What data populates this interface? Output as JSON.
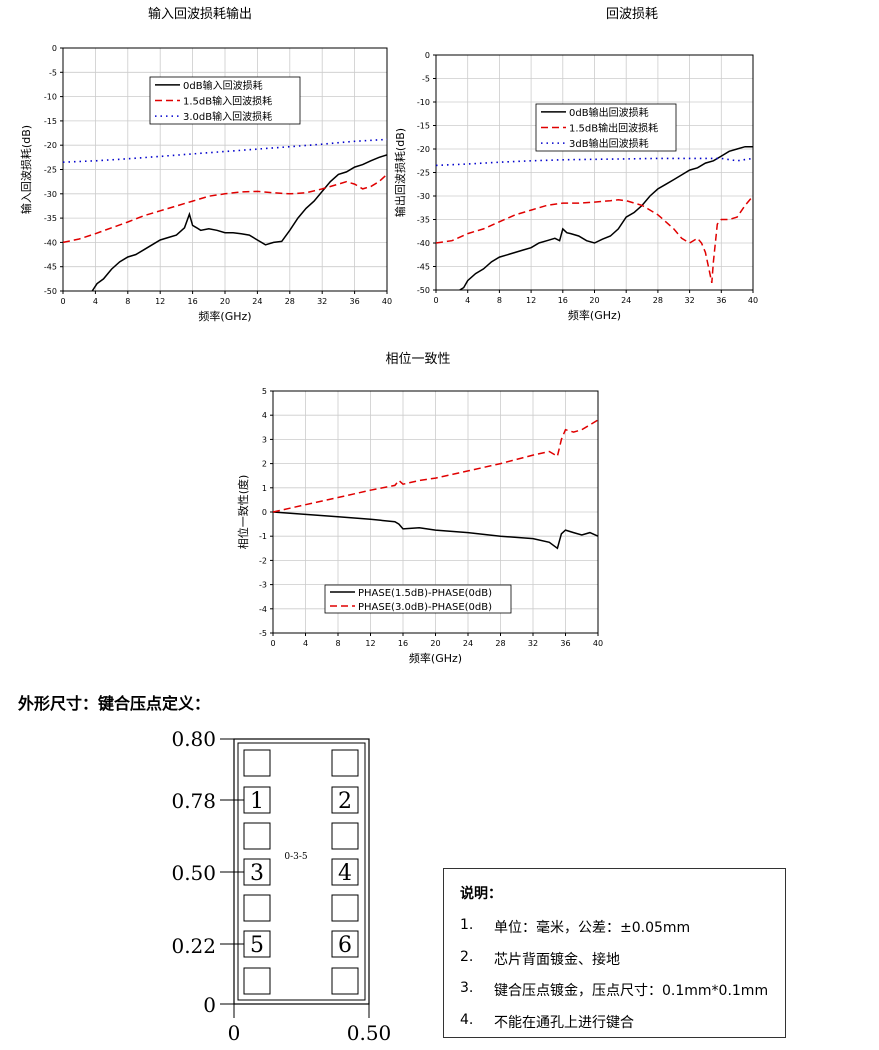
{
  "chart_data": [
    {
      "type": "line",
      "title": "输入回波损耗输出",
      "xlabel": "频率(GHz)",
      "ylabel": "输入回波损耗(dB)",
      "xlim": [
        0,
        40
      ],
      "ylim": [
        -50,
        0
      ],
      "xticks": [
        0,
        4,
        8,
        12,
        16,
        20,
        24,
        28,
        32,
        36,
        40
      ],
      "yticks": [
        0,
        -5,
        -10,
        -15,
        -20,
        -25,
        -30,
        -35,
        -40,
        -45,
        -50
      ],
      "grid": true,
      "legend_position": "top-center",
      "series": [
        {
          "name": "0dB输入回波损耗",
          "color": "#000000",
          "style": "solid",
          "x": [
            3.6,
            4.2,
            5,
            6,
            7,
            8,
            9,
            10,
            11,
            12,
            13,
            14,
            15,
            15.6,
            16,
            16.5,
            17,
            18,
            19,
            20,
            21,
            22,
            23,
            24,
            25,
            26,
            27,
            28,
            29,
            30,
            31,
            32,
            33,
            34,
            35,
            36,
            37,
            38,
            39,
            40
          ],
          "y": [
            -50,
            -48.5,
            -47.5,
            -45.5,
            -44,
            -43,
            -42.5,
            -41.5,
            -40.5,
            -39.5,
            -39,
            -38.5,
            -37,
            -34.2,
            -36.5,
            -37,
            -37.5,
            -37.2,
            -37.5,
            -38,
            -38,
            -38.2,
            -38.5,
            -39.5,
            -40.5,
            -40,
            -39.8,
            -37.5,
            -35,
            -33,
            -31.5,
            -29.5,
            -27.5,
            -26,
            -25.5,
            -24.5,
            -24,
            -23.2,
            -22.5,
            -22
          ]
        },
        {
          "name": "1.5dB输入回波损耗",
          "color": "#e00000",
          "style": "dashed",
          "x": [
            0,
            2,
            4,
            6,
            8,
            10,
            12,
            14,
            16,
            18,
            20,
            22,
            24,
            26,
            28,
            30,
            32,
            33,
            34,
            35,
            36,
            37,
            38,
            39,
            40
          ],
          "y": [
            -40,
            -39.3,
            -38.2,
            -37,
            -35.8,
            -34.5,
            -33.5,
            -32.5,
            -31.5,
            -30.5,
            -30,
            -29.6,
            -29.5,
            -29.8,
            -30,
            -29.8,
            -29,
            -28.5,
            -28,
            -27.5,
            -28,
            -29,
            -28.5,
            -27.5,
            -26
          ]
        },
        {
          "name": "3.0dB输入回波损耗",
          "color": "#0000cc",
          "style": "dotted",
          "x": [
            0,
            4,
            8,
            12,
            16,
            20,
            24,
            28,
            32,
            36,
            40
          ],
          "y": [
            -23.5,
            -23.2,
            -22.8,
            -22.3,
            -21.8,
            -21.3,
            -20.8,
            -20.3,
            -19.8,
            -19.2,
            -18.8
          ]
        }
      ]
    },
    {
      "type": "line",
      "title": "回波损耗",
      "xlabel": "频率(GHz)",
      "ylabel": "输出回波损耗(dB)",
      "xlim": [
        0,
        40
      ],
      "ylim": [
        -50,
        0
      ],
      "xticks": [
        0,
        4,
        8,
        12,
        16,
        20,
        24,
        28,
        32,
        36,
        40
      ],
      "yticks": [
        0,
        -5,
        -10,
        -15,
        -20,
        -25,
        -30,
        -35,
        -40,
        -45,
        -50
      ],
      "grid": true,
      "legend_position": "top-center",
      "series": [
        {
          "name": "0dB输出回波损耗",
          "color": "#000000",
          "style": "solid",
          "x": [
            3,
            3.5,
            4,
            5,
            6,
            7,
            8,
            9,
            10,
            11,
            12,
            13,
            14,
            15,
            15.6,
            16,
            16.5,
            17,
            18,
            19,
            20,
            21,
            22,
            23,
            24,
            25,
            26,
            27,
            28,
            29,
            30,
            31,
            32,
            33,
            34,
            35,
            36,
            37,
            38,
            39,
            40
          ],
          "y": [
            -50,
            -49.5,
            -48,
            -46.5,
            -45.5,
            -44,
            -43,
            -42.5,
            -42,
            -41.5,
            -41,
            -40,
            -39.5,
            -39,
            -39.5,
            -37,
            -37.8,
            -38,
            -38.5,
            -39.5,
            -40,
            -39.2,
            -38.5,
            -37,
            -34.5,
            -33.5,
            -32,
            -30,
            -28.5,
            -27.5,
            -26.5,
            -25.5,
            -24.5,
            -24,
            -23,
            -22.5,
            -21.5,
            -20.5,
            -20,
            -19.5,
            -19.5
          ]
        },
        {
          "name": "1.5dB输出回波损耗",
          "color": "#e00000",
          "style": "dashed",
          "x": [
            0,
            2,
            4,
            6,
            8,
            10,
            12,
            14,
            16,
            18,
            20,
            22,
            23,
            24,
            26,
            28,
            29,
            30,
            31,
            32,
            33,
            33.5,
            34,
            34.5,
            34.8,
            35,
            35.5,
            36,
            37,
            38,
            39,
            40
          ],
          "y": [
            -40,
            -39.5,
            -38,
            -37,
            -35.5,
            -34,
            -33,
            -32,
            -31.5,
            -31.5,
            -31.3,
            -31,
            -30.8,
            -31,
            -32,
            -34,
            -35.5,
            -37,
            -39,
            -40,
            -39,
            -40,
            -42,
            -46,
            -48.5,
            -44,
            -36,
            -35,
            -35,
            -34.5,
            -32,
            -30
          ]
        },
        {
          "name": "3dB输出回波损耗",
          "color": "#0000cc",
          "style": "dotted",
          "x": [
            0,
            4,
            8,
            12,
            16,
            20,
            24,
            28,
            32,
            36,
            38,
            40
          ],
          "y": [
            -23.5,
            -23.2,
            -22.8,
            -22.5,
            -22.3,
            -22.2,
            -22.1,
            -22,
            -22,
            -22,
            -22.5,
            -22
          ]
        }
      ]
    },
    {
      "type": "line",
      "title": "相位一致性",
      "xlabel": "频率(GHz)",
      "ylabel": "相位一致性(度)",
      "xlim": [
        0,
        40
      ],
      "ylim": [
        -5,
        5
      ],
      "xticks": [
        0,
        4,
        8,
        12,
        16,
        20,
        24,
        28,
        32,
        36,
        40
      ],
      "yticks": [
        5,
        4,
        3,
        2,
        1,
        0,
        -1,
        -2,
        -3,
        -4,
        -5
      ],
      "grid": true,
      "legend_position": "bottom-center",
      "series": [
        {
          "name": "PHASE(1.5dB)-PHASE(0dB)",
          "color": "#000000",
          "style": "solid",
          "x": [
            0,
            4,
            8,
            12,
            15,
            15.5,
            16,
            18,
            20,
            24,
            28,
            32,
            34,
            35,
            35.5,
            36,
            37,
            38,
            39,
            40
          ],
          "y": [
            0,
            -0.1,
            -0.2,
            -0.3,
            -0.4,
            -0.5,
            -0.7,
            -0.65,
            -0.75,
            -0.85,
            -1,
            -1.1,
            -1.25,
            -1.5,
            -0.9,
            -0.75,
            -0.85,
            -0.95,
            -0.85,
            -1
          ]
        },
        {
          "name": "PHASE(3.0dB)-PHASE(0dB)",
          "color": "#e00000",
          "style": "dashed",
          "x": [
            0,
            4,
            8,
            12,
            15,
            15.5,
            16,
            18,
            20,
            24,
            28,
            32,
            34,
            35,
            35.5,
            36,
            37,
            38,
            39,
            40
          ],
          "y": [
            0,
            0.3,
            0.6,
            0.9,
            1.1,
            1.3,
            1.15,
            1.3,
            1.4,
            1.7,
            2,
            2.35,
            2.5,
            2.3,
            3,
            3.4,
            3.3,
            3.4,
            3.6,
            3.8
          ]
        }
      ]
    }
  ],
  "section_title": "外形尺寸：键合压点定义：",
  "dimension_drawing": {
    "y_labels": [
      "0.80",
      "0.78",
      "0.50",
      "0.22",
      "0"
    ],
    "x_labels": [
      "0",
      "0.50"
    ],
    "chip_label": "0-3-5",
    "pads": [
      "1",
      "2",
      "3",
      "4",
      "5",
      "6"
    ]
  },
  "notes": {
    "title": "说明：",
    "items": [
      {
        "num": "1.",
        "text": "单位：毫米，公差：±0.05mm"
      },
      {
        "num": "2.",
        "text": "芯片背面镀金、接地"
      },
      {
        "num": "3.",
        "text": "键合压点镀金，压点尺寸：0.1mm*0.1mm"
      },
      {
        "num": "4.",
        "text": "不能在通孔上进行键合"
      }
    ]
  }
}
